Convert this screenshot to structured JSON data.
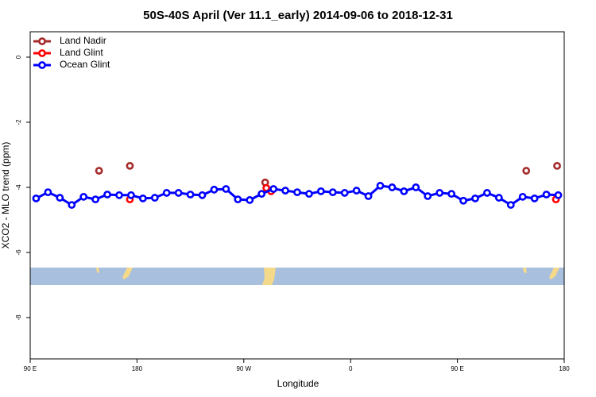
{
  "chart_data": {
    "type": "line",
    "title": "50S-40S April (Ver 11.1_early)   2014-09-06 to 2018-12-31",
    "xlabel": "Longitude",
    "ylabel": "XCO2 - MLO trend (ppm)",
    "xlim": [
      90,
      540
    ],
    "ylim": [
      -9.27,
      0.78
    ],
    "xticks": [
      {
        "value": 90,
        "label": "90 E"
      },
      {
        "value": 180,
        "label": "180"
      },
      {
        "value": 270,
        "label": "90 W"
      },
      {
        "value": 360,
        "label": "0"
      },
      {
        "value": 450,
        "label": "90 E"
      },
      {
        "value": 540,
        "label": "180"
      }
    ],
    "yticks": [
      0,
      -2,
      -4,
      -6,
      -8
    ],
    "legend": "top-left",
    "series": [
      {
        "name": "Land Nadir",
        "color": "#a52a2a",
        "mode": "markers",
        "x": [
          148,
          174,
          288,
          508,
          534
        ],
        "values": [
          -3.49,
          -3.34,
          -3.85,
          -3.49,
          -3.34
        ]
      },
      {
        "name": "Land Glint",
        "color": "#ff0000",
        "mode": "markers",
        "x": [
          174,
          289,
          293,
          533
        ],
        "values": [
          -4.37,
          -4.02,
          -4.12,
          -4.37
        ]
      },
      {
        "name": "Ocean Glint",
        "color": "#0000ff",
        "mode": "lines+markers",
        "x": [
          95,
          105,
          115,
          125,
          135,
          145,
          155,
          165,
          175,
          185,
          195,
          205,
          215,
          225,
          235,
          245,
          255,
          265,
          275,
          285,
          295,
          305,
          315,
          325,
          335,
          345,
          355,
          365,
          375,
          385,
          395,
          405,
          415,
          425,
          435,
          445,
          455,
          465,
          475,
          485,
          495,
          505,
          515,
          525,
          535
        ],
        "values": [
          -4.34,
          -4.15,
          -4.32,
          -4.54,
          -4.29,
          -4.37,
          -4.22,
          -4.24,
          -4.24,
          -4.34,
          -4.32,
          -4.17,
          -4.17,
          -4.22,
          -4.24,
          -4.07,
          -4.05,
          -4.37,
          -4.39,
          -4.2,
          -4.05,
          -4.1,
          -4.15,
          -4.2,
          -4.12,
          -4.15,
          -4.17,
          -4.1,
          -4.27,
          -3.95,
          -4.0,
          -4.12,
          -4.0,
          -4.27,
          -4.17,
          -4.2,
          -4.41,
          -4.34,
          -4.17,
          -4.32,
          -4.54,
          -4.29,
          -4.34,
          -4.22,
          -4.24
        ]
      }
    ]
  }
}
